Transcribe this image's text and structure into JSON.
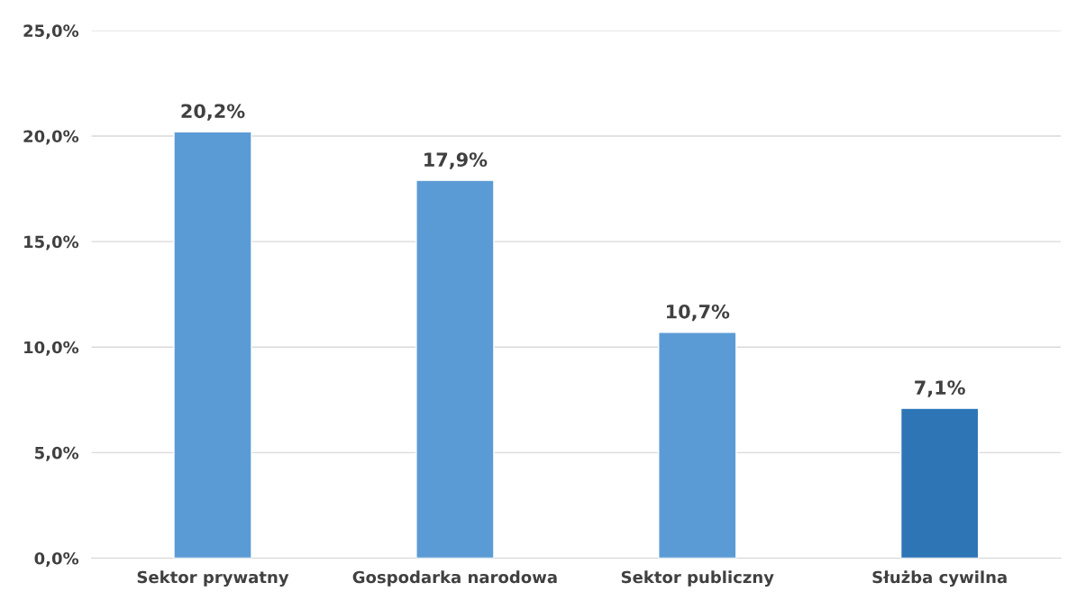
{
  "chart_data": {
    "type": "bar",
    "categories": [
      "Sektor prywatny",
      "Gospodarka narodowa",
      "Sektor publiczny",
      "Służba cywilna"
    ],
    "values": [
      20.2,
      17.9,
      10.7,
      7.1
    ],
    "colors": [
      "#5b9bd5",
      "#5b9bd5",
      "#5b9bd5",
      "#2e75b6"
    ],
    "value_labels": [
      "20,2%",
      "17,9%",
      "10,7%",
      "7,1%"
    ],
    "ylim": [
      0,
      25
    ],
    "yticks": [
      {
        "value": 0,
        "label": "0,0%"
      },
      {
        "value": 5,
        "label": "5,0%"
      },
      {
        "value": 10,
        "label": "10,0%"
      },
      {
        "value": 15,
        "label": "15,0%"
      },
      {
        "value": 20,
        "label": "20,0%"
      },
      {
        "value": 25,
        "label": "25,0%"
      }
    ],
    "grid": "y"
  }
}
